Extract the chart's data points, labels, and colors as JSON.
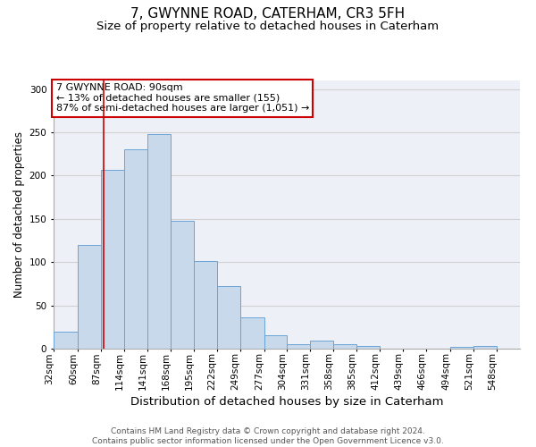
{
  "title": "7, GWYNNE ROAD, CATERHAM, CR3 5FH",
  "subtitle": "Size of property relative to detached houses in Caterham",
  "xlabel": "Distribution of detached houses by size in Caterham",
  "ylabel": "Number of detached properties",
  "bins": [
    32,
    60,
    87,
    114,
    141,
    168,
    195,
    222,
    249,
    277,
    304,
    331,
    358,
    385,
    412,
    439,
    466,
    494,
    521,
    548,
    575
  ],
  "counts": [
    20,
    120,
    207,
    230,
    248,
    148,
    101,
    72,
    36,
    15,
    5,
    9,
    5,
    3,
    0,
    0,
    0,
    2,
    3,
    0
  ],
  "bar_facecolor": "#c9d9ec",
  "bar_edgecolor": "#6ba3d6",
  "grid_color": "#d0d0d0",
  "bg_color": "#eef0f8",
  "red_line_x": 90,
  "red_line_color": "#cc0000",
  "annotation_text": "7 GWYNNE ROAD: 90sqm\n← 13% of detached houses are smaller (155)\n87% of semi-detached houses are larger (1,051) →",
  "annotation_box_color": "#cc0000",
  "footnote": "Contains HM Land Registry data © Crown copyright and database right 2024.\nContains public sector information licensed under the Open Government Licence v3.0.",
  "ylim": [
    0,
    310
  ],
  "xlim_left": 32,
  "xlim_right": 575,
  "title_fontsize": 11,
  "subtitle_fontsize": 9.5,
  "xlabel_fontsize": 9.5,
  "ylabel_fontsize": 8.5,
  "tick_fontsize": 7.5,
  "annot_fontsize": 8,
  "footnote_fontsize": 6.5
}
